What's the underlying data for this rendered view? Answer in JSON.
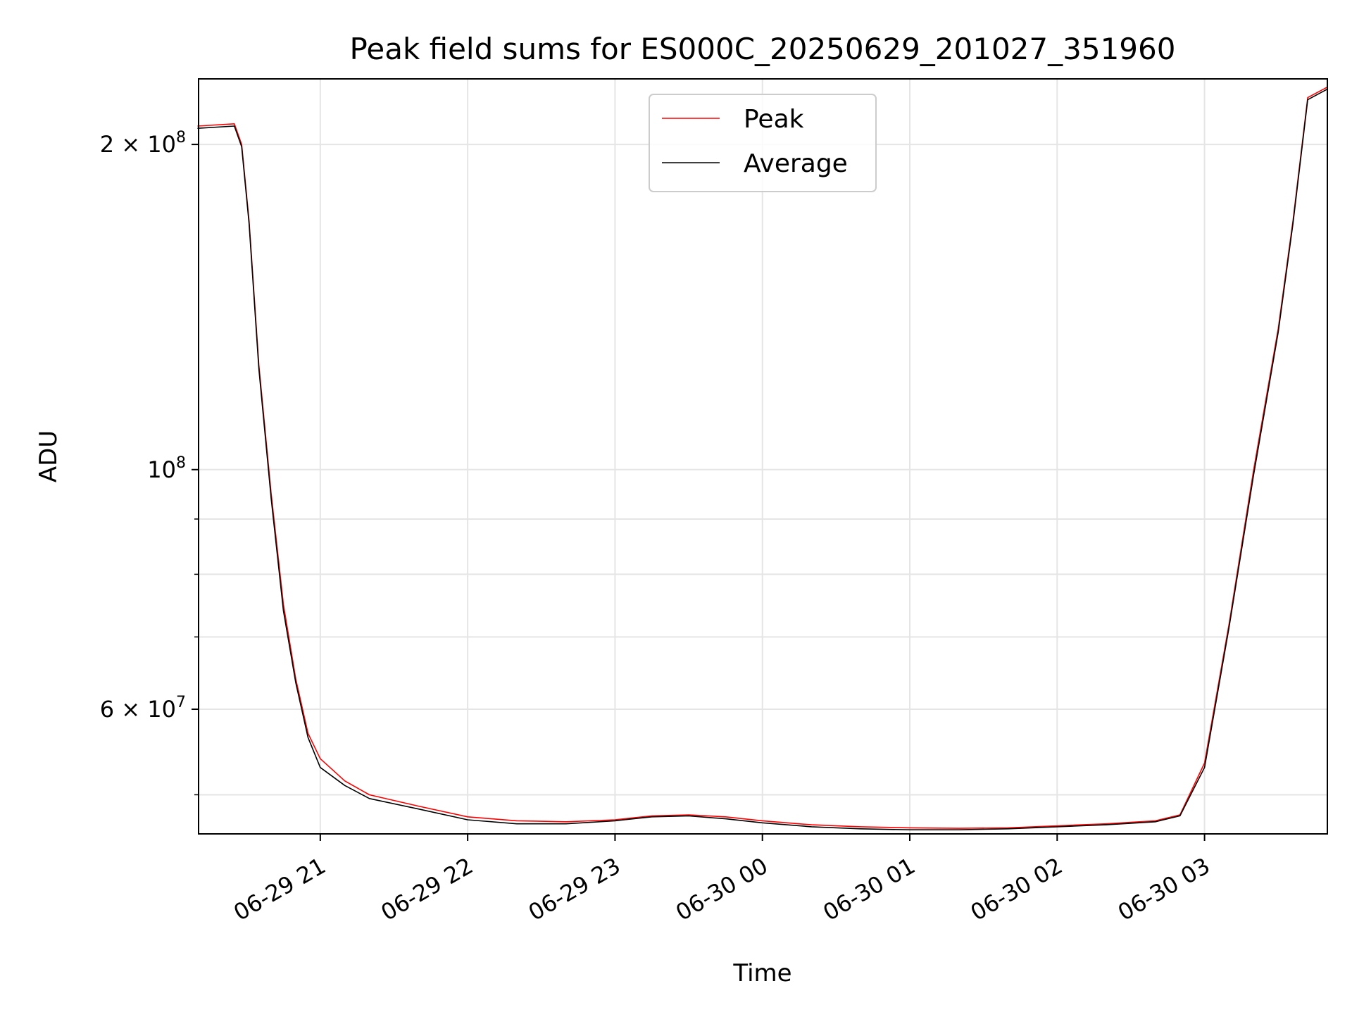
{
  "chart_data": {
    "type": "line",
    "title": "Peak field sums for ES000C_20250629_201027_351960",
    "xlabel": "Time",
    "ylabel": "ADU",
    "yscale": "log",
    "xlim": [
      "2025-06-29 20:10:27",
      "2025-06-30 03:50:00"
    ],
    "ylim": [
      46000000,
      230000000
    ],
    "grid": true,
    "legend_position": "top-center",
    "x_ticks": [
      {
        "t": "2025-06-29 21:00",
        "label": "06-29 21"
      },
      {
        "t": "2025-06-29 22:00",
        "label": "06-29 22"
      },
      {
        "t": "2025-06-29 23:00",
        "label": "06-29 23"
      },
      {
        "t": "2025-06-30 00:00",
        "label": "06-30 00"
      },
      {
        "t": "2025-06-30 01:00",
        "label": "06-30 01"
      },
      {
        "t": "2025-06-30 02:00",
        "label": "06-30 02"
      },
      {
        "t": "2025-06-30 03:00",
        "label": "06-30 03"
      }
    ],
    "y_major_ticks": [
      {
        "v": 60000000,
        "label_base": "6 × 10",
        "label_exp": "7"
      },
      {
        "v": 100000000,
        "label_base": "10",
        "label_exp": "8"
      },
      {
        "v": 200000000,
        "label_base": "2 × 10",
        "label_exp": "8"
      }
    ],
    "y_minor_ticks": [
      50000000,
      70000000,
      80000000,
      90000000
    ],
    "series": [
      {
        "name": "Peak",
        "color": "#ff0000",
        "x": [
          "2025-06-29 20:10",
          "2025-06-29 20:25",
          "2025-06-29 20:28",
          "2025-06-29 20:31",
          "2025-06-29 20:35",
          "2025-06-29 20:40",
          "2025-06-29 20:45",
          "2025-06-29 20:50",
          "2025-06-29 20:55",
          "2025-06-29 21:00",
          "2025-06-29 21:10",
          "2025-06-29 21:20",
          "2025-06-29 21:40",
          "2025-06-29 22:00",
          "2025-06-29 22:20",
          "2025-06-29 22:40",
          "2025-06-29 23:00",
          "2025-06-29 23:15",
          "2025-06-29 23:30",
          "2025-06-29 23:45",
          "2025-06-30 00:00",
          "2025-06-30 00:20",
          "2025-06-30 00:40",
          "2025-06-30 01:00",
          "2025-06-30 01:20",
          "2025-06-30 01:40",
          "2025-06-30 02:00",
          "2025-06-30 02:20",
          "2025-06-30 02:40",
          "2025-06-30 02:50",
          "2025-06-30 03:00",
          "2025-06-30 03:10",
          "2025-06-30 03:20",
          "2025-06-30 03:30",
          "2025-06-30 03:36",
          "2025-06-30 03:42",
          "2025-06-30 03:50"
        ],
        "y": [
          208000000,
          209000000,
          200000000,
          170000000,
          125000000,
          95000000,
          75000000,
          64000000,
          57000000,
          54000000,
          51500000,
          50000000,
          48800000,
          47700000,
          47300000,
          47200000,
          47400000,
          47800000,
          47900000,
          47700000,
          47300000,
          46900000,
          46700000,
          46600000,
          46550000,
          46600000,
          46800000,
          47000000,
          47300000,
          47900000,
          53500000,
          72000000,
          100000000,
          135000000,
          170000000,
          221000000,
          226000000
        ]
      },
      {
        "name": "Average",
        "color": "#000000",
        "x": [
          "2025-06-29 20:10",
          "2025-06-29 20:25",
          "2025-06-29 20:28",
          "2025-06-29 20:31",
          "2025-06-29 20:35",
          "2025-06-29 20:40",
          "2025-06-29 20:45",
          "2025-06-29 20:50",
          "2025-06-29 20:55",
          "2025-06-29 21:00",
          "2025-06-29 21:10",
          "2025-06-29 21:20",
          "2025-06-29 21:40",
          "2025-06-29 22:00",
          "2025-06-29 22:20",
          "2025-06-29 22:40",
          "2025-06-29 23:00",
          "2025-06-29 23:15",
          "2025-06-29 23:30",
          "2025-06-29 23:45",
          "2025-06-30 00:00",
          "2025-06-30 00:20",
          "2025-06-30 00:40",
          "2025-06-30 01:00",
          "2025-06-30 01:20",
          "2025-06-30 01:40",
          "2025-06-30 02:00",
          "2025-06-30 02:20",
          "2025-06-30 02:40",
          "2025-06-30 02:50",
          "2025-06-30 03:00",
          "2025-06-30 03:10",
          "2025-06-30 03:20",
          "2025-06-30 03:30",
          "2025-06-30 03:36",
          "2025-06-30 03:42",
          "2025-06-30 03:50"
        ],
        "y": [
          207000000,
          208000000,
          199000000,
          169000000,
          124000000,
          94000000,
          74000000,
          63500000,
          56500000,
          53000000,
          51000000,
          49600000,
          48500000,
          47400000,
          47000000,
          47000000,
          47300000,
          47700000,
          47800000,
          47500000,
          47100000,
          46700000,
          46500000,
          46400000,
          46400000,
          46500000,
          46700000,
          46900000,
          47200000,
          47800000,
          53000000,
          71500000,
          99000000,
          134000000,
          169000000,
          220000000,
          225000000
        ]
      }
    ]
  }
}
